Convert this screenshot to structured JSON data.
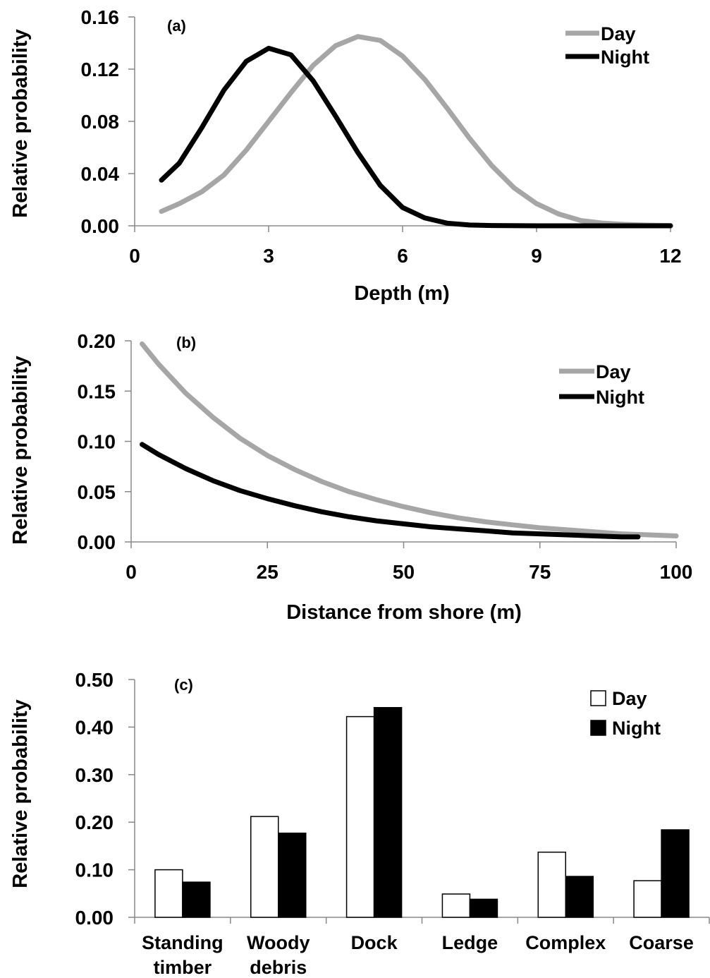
{
  "colors": {
    "day_line": "#a6a6a6",
    "night_line": "#000000",
    "day_bar": "#ffffff",
    "night_bar": "#000000"
  },
  "chart_data": [
    {
      "type": "line",
      "panel_label": "(a)",
      "xlabel": "Depth (m)",
      "ylabel": "Relative probability",
      "xlim": [
        0,
        12
      ],
      "ylim": [
        0,
        0.16
      ],
      "xticks": [
        "0",
        "3",
        "6",
        "9",
        "12"
      ],
      "yticks": [
        "0.00",
        "0.04",
        "0.08",
        "0.12",
        "0.16"
      ],
      "grid": false,
      "legend": "top-right",
      "series": [
        {
          "name": "Day",
          "x": [
            0.6,
            1.0,
            1.5,
            2.0,
            2.5,
            3.0,
            3.5,
            4.0,
            4.5,
            5.0,
            5.5,
            6.0,
            6.5,
            7.0,
            7.5,
            8.0,
            8.5,
            9.0,
            9.5,
            10.0,
            10.5,
            11.0,
            11.5,
            12.0
          ],
          "y": [
            0.011,
            0.017,
            0.026,
            0.039,
            0.058,
            0.08,
            0.102,
            0.123,
            0.138,
            0.145,
            0.142,
            0.13,
            0.112,
            0.09,
            0.067,
            0.046,
            0.029,
            0.017,
            0.009,
            0.004,
            0.002,
            0.001,
            0.0005,
            0.0002
          ]
        },
        {
          "name": "Night",
          "x": [
            0.6,
            1.0,
            1.5,
            2.0,
            2.5,
            3.0,
            3.5,
            4.0,
            4.5,
            5.0,
            5.5,
            6.0,
            6.5,
            7.0,
            7.5,
            8.0,
            9.0,
            10.0,
            11.0,
            12.0
          ],
          "y": [
            0.035,
            0.048,
            0.075,
            0.104,
            0.126,
            0.136,
            0.131,
            0.111,
            0.084,
            0.056,
            0.031,
            0.014,
            0.006,
            0.002,
            0.0006,
            0.0002,
            0.0,
            0.0,
            0.0,
            0.0
          ]
        }
      ]
    },
    {
      "type": "line",
      "panel_label": "(b)",
      "xlabel": "Distance from shore (m)",
      "ylabel": "Relative probability",
      "xlim": [
        0,
        100
      ],
      "ylim": [
        0,
        0.2
      ],
      "xticks": [
        "0",
        "25",
        "50",
        "75",
        "100"
      ],
      "yticks": [
        "0.00",
        "0.05",
        "0.10",
        "0.15",
        "0.20"
      ],
      "grid": false,
      "legend": "top-right",
      "series": [
        {
          "name": "Day",
          "x": [
            2,
            5,
            10,
            15,
            20,
            25,
            30,
            35,
            40,
            45,
            50,
            55,
            60,
            65,
            70,
            75,
            80,
            85,
            90,
            95,
            100
          ],
          "y": [
            0.197,
            0.177,
            0.148,
            0.124,
            0.103,
            0.086,
            0.072,
            0.06,
            0.05,
            0.042,
            0.035,
            0.029,
            0.024,
            0.02,
            0.017,
            0.014,
            0.012,
            0.01,
            0.008,
            0.007,
            0.006
          ]
        },
        {
          "name": "Night",
          "x": [
            2,
            5,
            10,
            15,
            20,
            25,
            30,
            35,
            40,
            45,
            50,
            55,
            60,
            65,
            70,
            75,
            80,
            85,
            90,
            93
          ],
          "y": [
            0.097,
            0.087,
            0.073,
            0.061,
            0.051,
            0.043,
            0.036,
            0.03,
            0.025,
            0.021,
            0.018,
            0.015,
            0.013,
            0.011,
            0.009,
            0.008,
            0.007,
            0.006,
            0.005,
            0.005
          ]
        }
      ]
    },
    {
      "type": "bar",
      "panel_label": "(c)",
      "xlabel": "",
      "ylabel": "Relative probability",
      "ylim": [
        0,
        0.5
      ],
      "yticks": [
        "0.00",
        "0.10",
        "0.20",
        "0.30",
        "0.40",
        "0.50"
      ],
      "grid": false,
      "legend": "top-right",
      "categories": [
        [
          "Standing",
          "timber"
        ],
        [
          "Woody",
          "debris"
        ],
        [
          "Dock"
        ],
        [
          "Ledge"
        ],
        [
          "Complex"
        ],
        [
          "Coarse"
        ]
      ],
      "series": [
        {
          "name": "Day",
          "values": [
            0.1,
            0.212,
            0.422,
            0.049,
            0.137,
            0.077
          ]
        },
        {
          "name": "Night",
          "values": [
            0.074,
            0.177,
            0.441,
            0.038,
            0.086,
            0.184
          ]
        }
      ]
    }
  ]
}
